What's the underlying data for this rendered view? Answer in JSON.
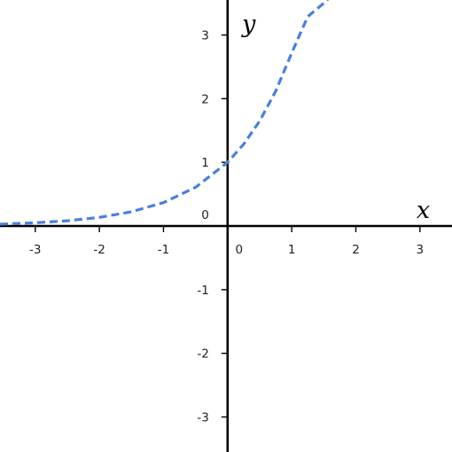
{
  "chart_data": {
    "type": "line",
    "title": "",
    "xlabel": "x",
    "ylabel": "y",
    "xlim": [
      -3.55,
      3.5
    ],
    "ylim": [
      -3.55,
      3.55
    ],
    "grid": false,
    "x_ticks": [
      -3,
      -2,
      -1,
      0,
      1,
      2,
      3
    ],
    "y_ticks": [
      -3,
      -2,
      -1,
      1,
      2,
      3
    ],
    "x_tick_labels": [
      "-3",
      "-2",
      "-1",
      "0",
      "1",
      "2",
      "3"
    ],
    "y_tick_labels": [
      "-3",
      "-2",
      "-1",
      "1",
      "2",
      "3"
    ],
    "origin_y_label": "0",
    "series": [
      {
        "color": "#4a7fe0",
        "style": "dashed",
        "x": [
          -3.55,
          -3.0,
          -2.5,
          -2.0,
          -1.5,
          -1.0,
          -0.5,
          0.0,
          0.25,
          0.5,
          0.75,
          1.0,
          1.25,
          1.5,
          1.6
        ],
        "y": [
          0.029,
          0.05,
          0.082,
          0.135,
          0.223,
          0.368,
          0.607,
          1.0,
          1.284,
          1.649,
          2.117,
          2.718,
          3.29,
          3.5,
          3.6
        ]
      }
    ]
  }
}
